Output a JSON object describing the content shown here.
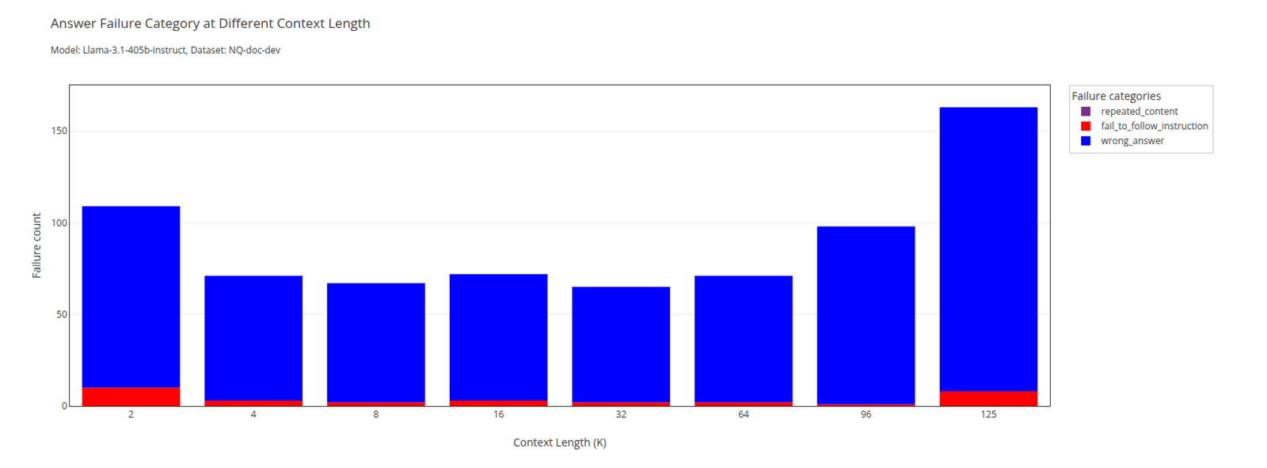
{
  "chart_data": {
    "type": "bar",
    "title": "Answer Failure Category at Different Context Length",
    "subtitle": "Model: Llama-3.1-405b-instruct, Dataset: NQ-doc-dev",
    "xlabel": "Context Length (K)",
    "ylabel": "Failure count",
    "legend_title": "Failure categories",
    "categories": [
      "2",
      "4",
      "8",
      "16",
      "32",
      "64",
      "96",
      "125"
    ],
    "series": [
      {
        "name": "repeated_content",
        "color": "#7B2D8B",
        "values": [
          0,
          0,
          0,
          0,
          0,
          0,
          0,
          0
        ]
      },
      {
        "name": "fail_to_follow_instruction",
        "color": "#FF0000",
        "values": [
          10,
          3,
          2,
          3,
          2,
          2,
          1,
          8
        ]
      },
      {
        "name": "wrong_answer",
        "color": "#0000FF",
        "values": [
          99,
          68,
          65,
          69,
          63,
          69,
          97,
          155
        ]
      }
    ],
    "stacked": true,
    "ylim": [
      0,
      175
    ],
    "yticks": [
      0,
      50,
      100,
      150
    ],
    "grid": true,
    "legend": "right"
  }
}
